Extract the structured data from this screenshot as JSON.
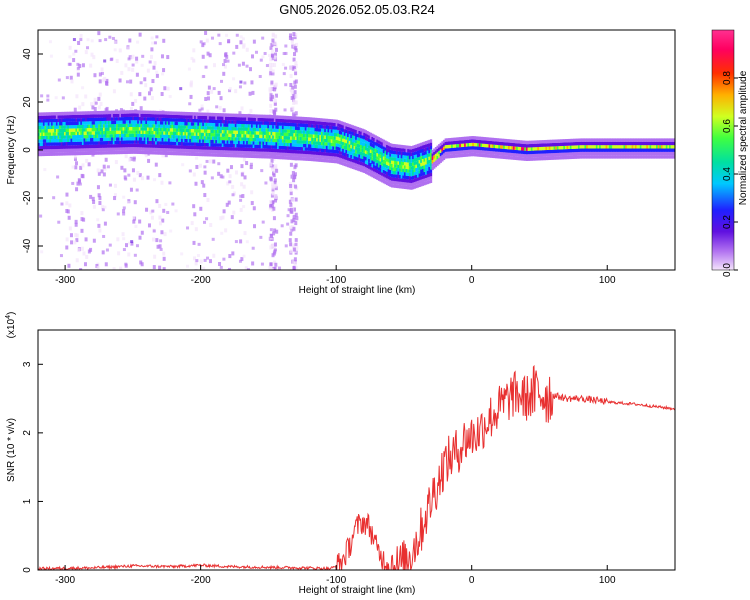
{
  "title": "GN05.2026.052.05.03.R24",
  "chart_data": [
    {
      "type": "heatmap",
      "title": "GN05.2026.052.05.03.R24",
      "xlabel": "Height of straight line (km)",
      "ylabel": "Frequency (Hz)",
      "xlim": [
        -320,
        150
      ],
      "ylim": [
        -50,
        50
      ],
      "xticks": [
        -300,
        -200,
        -100,
        0,
        100
      ],
      "yticks": [
        -40,
        -20,
        0,
        20,
        40
      ],
      "colorbar": {
        "label": "Normalized spectral amplitude",
        "range": [
          0,
          1
        ],
        "ticks": [
          "0.0",
          "0.2",
          "0.4",
          "0.6",
          "0.8"
        ],
        "tick_values": [
          0,
          0.2,
          0.4,
          0.6,
          0.8
        ],
        "colors": [
          "#f4e4fb",
          "#b070f0",
          "#6010e0",
          "#2020ff",
          "#00c8ff",
          "#00e0a0",
          "#40ff40",
          "#d0ff20",
          "#ffb000",
          "#ff3000",
          "#ff0060",
          "#ff3090"
        ]
      },
      "ridge": {
        "x": [
          -320,
          -250,
          -200,
          -150,
          -120,
          -100,
          -80,
          -60,
          -45,
          -30,
          -20,
          0,
          40,
          80,
          150
        ],
        "freq": [
          7,
          8,
          7,
          6,
          5,
          4,
          0,
          -6,
          -7,
          -4,
          1,
          2,
          0,
          1,
          1
        ]
      },
      "bands_x": [
        -300,
        -270,
        -265,
        -225,
        -210,
        -160,
        -150,
        -145,
        -135,
        -130
      ]
    },
    {
      "type": "line",
      "xlabel": "Height of straight line (km)",
      "ylabel": "SNR (10 * v/v)",
      "multiplier": "(x10",
      "multiplier_exp": "4",
      "multiplier_close": ")",
      "xlim": [
        -320,
        150
      ],
      "ylim": [
        0,
        3.5
      ],
      "xticks": [
        -300,
        -200,
        -100,
        0,
        100
      ],
      "yticks": [
        0,
        1,
        2,
        3
      ],
      "color": "#e83030",
      "series": [
        {
          "name": "SNR",
          "x": [
            -320,
            -280,
            -250,
            -220,
            -200,
            -180,
            -150,
            -120,
            -105,
            -100,
            -95,
            -90,
            -87,
            -84,
            -80,
            -76,
            -72,
            -70,
            -65,
            -60,
            -55,
            -50,
            -45,
            -40,
            -37,
            -35,
            -32,
            -30,
            -28,
            -25,
            -22,
            -20,
            -15,
            -10,
            -5,
            0,
            5,
            10,
            15,
            20,
            25,
            30,
            35,
            40,
            45,
            50,
            55,
            60,
            70,
            80,
            90,
            100,
            120,
            150
          ],
          "y": [
            0.02,
            0.03,
            0.06,
            0.05,
            0.07,
            0.05,
            0.04,
            0.03,
            0.02,
            0.05,
            0.15,
            0.35,
            0.55,
            0.65,
            0.7,
            0.65,
            0.45,
            0.3,
            0.15,
            0.07,
            0.05,
            0.1,
            0.25,
            0.45,
            0.6,
            0.75,
            0.9,
            1.0,
            1.15,
            1.25,
            1.45,
            1.55,
            1.65,
            1.75,
            1.9,
            1.95,
            2.0,
            2.15,
            2.25,
            2.35,
            2.45,
            2.55,
            2.55,
            2.5,
            2.55,
            2.6,
            2.55,
            2.55,
            2.5,
            2.5,
            2.48,
            2.45,
            2.42,
            2.35
          ]
        }
      ]
    }
  ]
}
